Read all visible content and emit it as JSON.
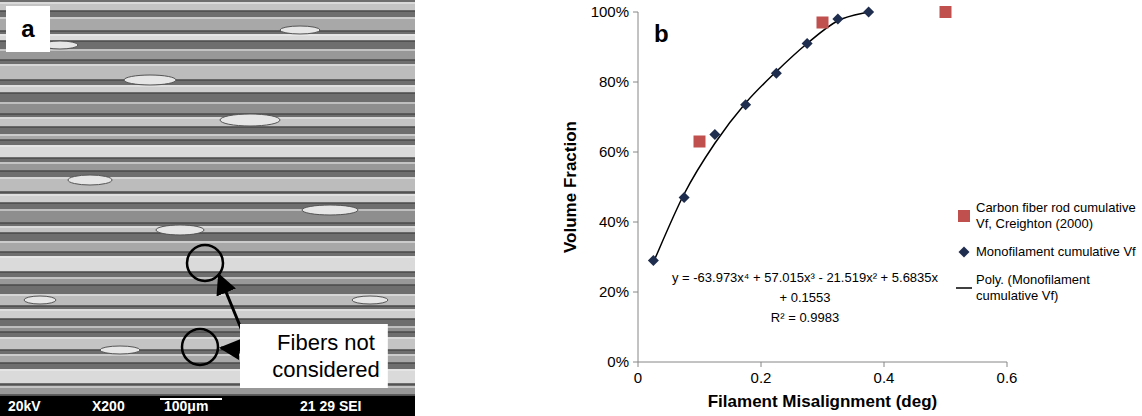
{
  "sem_image": {
    "letter": "a",
    "annotation": "Fibers not considered",
    "info_bar": {
      "voltage": "20kV",
      "magnification": "X200",
      "scale": "100μm",
      "label": "21 29 SEI"
    }
  },
  "chart_data": {
    "type": "scatter",
    "letter": "b",
    "x_label": "Filament Misalignment (deg)",
    "y_label": "Volume Fraction",
    "xlim": [
      0,
      0.6
    ],
    "xticks": [
      0,
      0.2,
      0.4,
      0.6
    ],
    "ylim": [
      0,
      100
    ],
    "yticks": [
      {
        "value": 0,
        "label": "0%"
      },
      {
        "value": 20,
        "label": "20%"
      },
      {
        "value": 40,
        "label": "40%"
      },
      {
        "value": 60,
        "label": "60%"
      },
      {
        "value": 80,
        "label": "80%"
      },
      {
        "value": 100,
        "label": "100%"
      }
    ],
    "grid": false,
    "legend": "right",
    "annotations": [
      "y = -63.973x⁴ + 57.015x³ - 21.519x² + 5.6835x",
      "+ 0.1553",
      "R² = 0.9983"
    ],
    "series": [
      {
        "name": "Carbon fiber rod cumulative Vf, Creighton (2000)",
        "type": "scatter",
        "marker": "square",
        "color": "#c0504d",
        "x": [
          0.1,
          0.3,
          0.5
        ],
        "values": [
          63,
          97,
          100
        ]
      },
      {
        "name": "Monofilament cumulative Vf",
        "type": "scatter",
        "marker": "diamond",
        "color": "#1f2d4e",
        "x": [
          0.025,
          0.075,
          0.125,
          0.175,
          0.225,
          0.275,
          0.325,
          0.375
        ],
        "values": [
          29,
          47,
          65,
          73.5,
          82.5,
          91,
          98,
          100
        ]
      },
      {
        "name": "Poly. (Monofilament cumulative Vf)",
        "type": "line",
        "marker": "none",
        "line_style": "solid",
        "color": "#000000",
        "x": [
          0.025,
          0.075,
          0.125,
          0.175,
          0.225,
          0.275,
          0.325,
          0.375
        ],
        "values": [
          28.5,
          48,
          62.5,
          74,
          83,
          91,
          97.5,
          100
        ]
      }
    ]
  }
}
